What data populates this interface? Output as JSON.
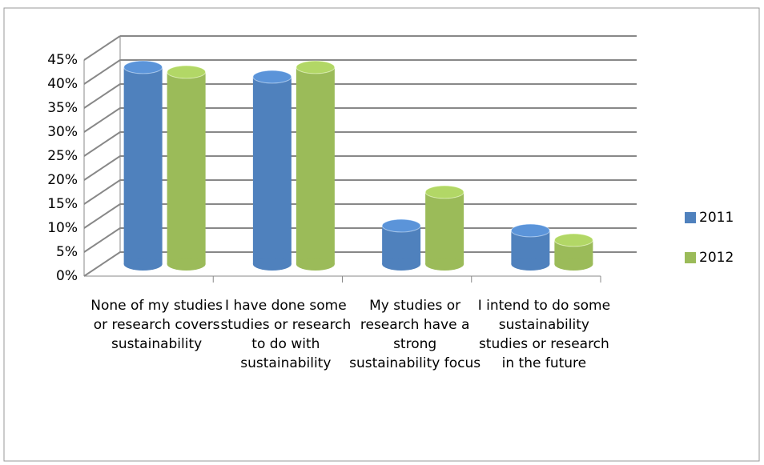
{
  "chart_data": {
    "type": "bar",
    "categories": [
      "None of my studies or research covers sustainability",
      "I have done some studies or research to do with sustainability",
      "My studies or research have a strong sustainability focus",
      "I intend to do some sustainability studies or research in the future"
    ],
    "series": [
      {
        "name": "2011",
        "color": "#4f81bd",
        "values": [
          41,
          39,
          8,
          7
        ]
      },
      {
        "name": "2012",
        "color": "#9bbb59",
        "values": [
          40,
          41,
          15,
          5
        ]
      }
    ],
    "ylim": [
      0,
      45
    ],
    "yticks": [
      {
        "value": 0,
        "label": "0%"
      },
      {
        "value": 5,
        "label": "5%"
      },
      {
        "value": 10,
        "label": "10%"
      },
      {
        "value": 15,
        "label": "15%"
      },
      {
        "value": 20,
        "label": "20%"
      },
      {
        "value": 25,
        "label": "25%"
      },
      {
        "value": 30,
        "label": "30%"
      },
      {
        "value": 35,
        "label": "35%"
      },
      {
        "value": 40,
        "label": "40%"
      },
      {
        "value": 45,
        "label": "45%"
      }
    ],
    "grid": true,
    "legend": "right"
  }
}
